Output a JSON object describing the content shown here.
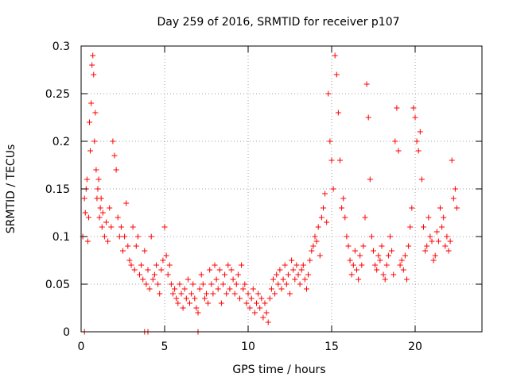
{
  "chart_data": {
    "type": "scatter",
    "title": "Day 259 of 2016, SRMTID for receiver p107",
    "xlabel": "GPS time / hours",
    "ylabel": "SRMTID / TECUs",
    "xlim": [
      0,
      24
    ],
    "ylim": [
      0,
      0.3
    ],
    "xticks": [
      0,
      5,
      10,
      15,
      20
    ],
    "yticks": [
      0,
      0.05,
      0.1,
      0.15,
      0.2,
      0.25,
      0.3
    ],
    "xtick_labels": [
      "0",
      "5",
      "10",
      "15",
      "20"
    ],
    "ytick_labels": [
      "0",
      "0.05",
      "0.1",
      "0.15",
      "0.2",
      "0.25",
      "0.3"
    ],
    "grid": true,
    "marker": "+",
    "color": "#ff0000",
    "series": [
      {
        "name": "SRMTID",
        "points": [
          [
            0.1,
            0.1
          ],
          [
            0.2,
            0.14
          ],
          [
            0.25,
            0.125
          ],
          [
            0.3,
            0.15
          ],
          [
            0.35,
            0.16
          ],
          [
            0.4,
            0.095
          ],
          [
            0.45,
            0.12
          ],
          [
            0.5,
            0.22
          ],
          [
            0.55,
            0.19
          ],
          [
            0.6,
            0.24
          ],
          [
            0.65,
            0.28
          ],
          [
            0.7,
            0.29
          ],
          [
            0.75,
            0.27
          ],
          [
            0.8,
            0.2
          ],
          [
            0.85,
            0.23
          ],
          [
            0.9,
            0.17
          ],
          [
            0.95,
            0.14
          ],
          [
            1.0,
            0.15
          ],
          [
            1.05,
            0.16
          ],
          [
            1.1,
            0.12
          ],
          [
            1.15,
            0.13
          ],
          [
            1.2,
            0.14
          ],
          [
            1.25,
            0.11
          ],
          [
            1.3,
            0.125
          ],
          [
            1.4,
            0.1
          ],
          [
            1.5,
            0.115
          ],
          [
            1.6,
            0.095
          ],
          [
            1.7,
            0.13
          ],
          [
            1.8,
            0.11
          ],
          [
            1.9,
            0.2
          ],
          [
            2.0,
            0.185
          ],
          [
            2.1,
            0.17
          ],
          [
            2.2,
            0.12
          ],
          [
            2.3,
            0.1
          ],
          [
            2.4,
            0.11
          ],
          [
            2.5,
            0.085
          ],
          [
            2.6,
            0.1
          ],
          [
            2.7,
            0.135
          ],
          [
            2.8,
            0.09
          ],
          [
            2.9,
            0.075
          ],
          [
            3.0,
            0.07
          ],
          [
            3.1,
            0.11
          ],
          [
            3.2,
            0.065
          ],
          [
            3.3,
            0.09
          ],
          [
            3.4,
            0.1
          ],
          [
            3.5,
            0.06
          ],
          [
            3.6,
            0.07
          ],
          [
            3.7,
            0.055
          ],
          [
            3.8,
            0.085
          ],
          [
            3.9,
            0.05
          ],
          [
            4.0,
            0.065
          ],
          [
            4.1,
            0.045
          ],
          [
            4.2,
            0.1
          ],
          [
            4.3,
            0.055
          ],
          [
            4.4,
            0.06
          ],
          [
            4.5,
            0.07
          ],
          [
            4.6,
            0.05
          ],
          [
            4.7,
            0.04
          ],
          [
            4.8,
            0.065
          ],
          [
            4.9,
            0.075
          ],
          [
            5.0,
            0.11
          ],
          [
            5.1,
            0.08
          ],
          [
            5.2,
            0.06
          ],
          [
            5.3,
            0.07
          ],
          [
            5.4,
            0.05
          ],
          [
            5.5,
            0.04
          ],
          [
            5.6,
            0.045
          ],
          [
            5.7,
            0.035
          ],
          [
            5.8,
            0.03
          ],
          [
            5.9,
            0.05
          ],
          [
            6.0,
            0.04
          ],
          [
            6.1,
            0.025
          ],
          [
            6.2,
            0.045
          ],
          [
            6.3,
            0.035
          ],
          [
            6.4,
            0.055
          ],
          [
            6.5,
            0.03
          ],
          [
            6.6,
            0.04
          ],
          [
            6.7,
            0.05
          ],
          [
            6.8,
            0.035
          ],
          [
            6.9,
            0.025
          ],
          [
            7.0,
            0.02
          ],
          [
            7.1,
            0.045
          ],
          [
            7.2,
            0.06
          ],
          [
            7.3,
            0.05
          ],
          [
            7.4,
            0.035
          ],
          [
            7.5,
            0.04
          ],
          [
            7.6,
            0.03
          ],
          [
            7.7,
            0.065
          ],
          [
            7.8,
            0.05
          ],
          [
            7.9,
            0.04
          ],
          [
            8.0,
            0.07
          ],
          [
            8.1,
            0.055
          ],
          [
            8.2,
            0.045
          ],
          [
            8.3,
            0.065
          ],
          [
            8.4,
            0.03
          ],
          [
            8.5,
            0.05
          ],
          [
            8.6,
            0.06
          ],
          [
            8.7,
            0.04
          ],
          [
            8.8,
            0.07
          ],
          [
            8.9,
            0.045
          ],
          [
            9.0,
            0.065
          ],
          [
            9.1,
            0.055
          ],
          [
            9.2,
            0.04
          ],
          [
            9.3,
            0.05
          ],
          [
            9.4,
            0.06
          ],
          [
            9.5,
            0.035
          ],
          [
            9.6,
            0.07
          ],
          [
            9.7,
            0.045
          ],
          [
            9.8,
            0.05
          ],
          [
            9.9,
            0.03
          ],
          [
            10.0,
            0.04
          ],
          [
            10.1,
            0.025
          ],
          [
            10.2,
            0.035
          ],
          [
            10.3,
            0.045
          ],
          [
            10.4,
            0.02
          ],
          [
            10.5,
            0.03
          ],
          [
            10.6,
            0.04
          ],
          [
            10.7,
            0.025
          ],
          [
            10.8,
            0.035
          ],
          [
            10.9,
            0.015
          ],
          [
            11.0,
            0.03
          ],
          [
            11.1,
            0.02
          ],
          [
            11.2,
            0.01
          ],
          [
            11.3,
            0.035
          ],
          [
            11.4,
            0.045
          ],
          [
            11.5,
            0.055
          ],
          [
            11.6,
            0.04
          ],
          [
            11.7,
            0.06
          ],
          [
            11.8,
            0.05
          ],
          [
            11.9,
            0.065
          ],
          [
            12.0,
            0.045
          ],
          [
            12.1,
            0.055
          ],
          [
            12.2,
            0.07
          ],
          [
            12.3,
            0.05
          ],
          [
            12.4,
            0.06
          ],
          [
            12.5,
            0.04
          ],
          [
            12.6,
            0.075
          ],
          [
            12.7,
            0.065
          ],
          [
            12.8,
            0.055
          ],
          [
            12.9,
            0.07
          ],
          [
            13.0,
            0.06
          ],
          [
            13.1,
            0.05
          ],
          [
            13.2,
            0.065
          ],
          [
            13.3,
            0.07
          ],
          [
            13.4,
            0.055
          ],
          [
            13.5,
            0.045
          ],
          [
            13.6,
            0.06
          ],
          [
            13.7,
            0.075
          ],
          [
            13.8,
            0.085
          ],
          [
            13.9,
            0.09
          ],
          [
            14.0,
            0.1
          ],
          [
            14.1,
            0.095
          ],
          [
            14.2,
            0.11
          ],
          [
            14.3,
            0.08
          ],
          [
            14.4,
            0.12
          ],
          [
            14.5,
            0.13
          ],
          [
            14.6,
            0.145
          ],
          [
            14.7,
            0.115
          ],
          [
            14.8,
            0.25
          ],
          [
            14.9,
            0.2
          ],
          [
            15.0,
            0.18
          ],
          [
            15.1,
            0.15
          ],
          [
            15.2,
            0.29
          ],
          [
            15.3,
            0.27
          ],
          [
            15.4,
            0.23
          ],
          [
            15.5,
            0.18
          ],
          [
            15.6,
            0.13
          ],
          [
            15.7,
            0.14
          ],
          [
            15.8,
            0.12
          ],
          [
            15.9,
            0.1
          ],
          [
            16.0,
            0.09
          ],
          [
            16.1,
            0.075
          ],
          [
            16.2,
            0.06
          ],
          [
            16.3,
            0.07
          ],
          [
            16.4,
            0.085
          ],
          [
            16.5,
            0.065
          ],
          [
            16.6,
            0.055
          ],
          [
            16.7,
            0.08
          ],
          [
            16.8,
            0.07
          ],
          [
            16.9,
            0.09
          ],
          [
            17.0,
            0.12
          ],
          [
            17.1,
            0.26
          ],
          [
            17.2,
            0.225
          ],
          [
            17.3,
            0.16
          ],
          [
            17.4,
            0.1
          ],
          [
            17.5,
            0.085
          ],
          [
            17.6,
            0.07
          ],
          [
            17.7,
            0.065
          ],
          [
            17.8,
            0.08
          ],
          [
            17.9,
            0.075
          ],
          [
            18.0,
            0.09
          ],
          [
            18.1,
            0.06
          ],
          [
            18.2,
            0.055
          ],
          [
            18.3,
            0.07
          ],
          [
            18.4,
            0.08
          ],
          [
            18.5,
            0.1
          ],
          [
            18.6,
            0.085
          ],
          [
            18.7,
            0.06
          ],
          [
            18.8,
            0.2
          ],
          [
            18.9,
            0.235
          ],
          [
            19.0,
            0.19
          ],
          [
            19.1,
            0.07
          ],
          [
            19.2,
            0.075
          ],
          [
            19.3,
            0.065
          ],
          [
            19.4,
            0.08
          ],
          [
            19.5,
            0.055
          ],
          [
            19.6,
            0.09
          ],
          [
            19.7,
            0.11
          ],
          [
            19.8,
            0.13
          ],
          [
            19.9,
            0.235
          ],
          [
            20.0,
            0.225
          ],
          [
            20.1,
            0.2
          ],
          [
            20.2,
            0.19
          ],
          [
            20.3,
            0.21
          ],
          [
            20.4,
            0.16
          ],
          [
            20.5,
            0.11
          ],
          [
            20.6,
            0.085
          ],
          [
            20.7,
            0.09
          ],
          [
            20.8,
            0.12
          ],
          [
            20.9,
            0.1
          ],
          [
            21.0,
            0.095
          ],
          [
            21.1,
            0.075
          ],
          [
            21.2,
            0.08
          ],
          [
            21.3,
            0.105
          ],
          [
            21.4,
            0.095
          ],
          [
            21.5,
            0.13
          ],
          [
            21.6,
            0.11
          ],
          [
            21.7,
            0.12
          ],
          [
            21.8,
            0.09
          ],
          [
            21.9,
            0.1
          ],
          [
            22.0,
            0.085
          ],
          [
            22.1,
            0.095
          ],
          [
            22.2,
            0.18
          ],
          [
            22.3,
            0.14
          ],
          [
            22.4,
            0.15
          ],
          [
            22.5,
            0.13
          ],
          [
            0.2,
            0.0
          ],
          [
            3.8,
            0.0
          ],
          [
            4.0,
            0.0
          ],
          [
            7.0,
            0.0
          ]
        ]
      }
    ]
  }
}
